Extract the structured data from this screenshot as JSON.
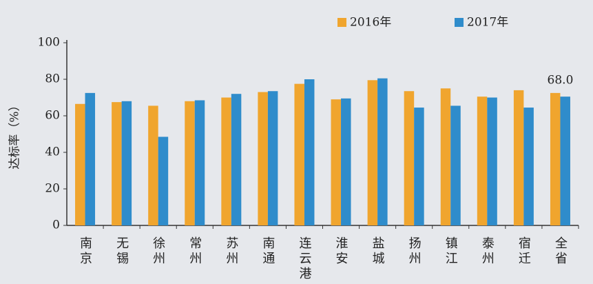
{
  "chart_data": {
    "type": "bar",
    "categories": [
      "南京",
      "无锡",
      "徐州",
      "常州",
      "苏州",
      "南通",
      "连云港",
      "淮安",
      "盐城",
      "扬州",
      "镇江",
      "泰州",
      "宿迁",
      "全省"
    ],
    "series": [
      {
        "name": "2016年",
        "color": "#f0a52e",
        "values": [
          66.5,
          67.5,
          65.5,
          68,
          70,
          73,
          77.5,
          69,
          79.5,
          73.5,
          75,
          70.5,
          74,
          72.5
        ]
      },
      {
        "name": "2017年",
        "color": "#2f8ccb",
        "values": [
          72.5,
          68,
          48.5,
          68.5,
          72,
          73.5,
          80,
          69.5,
          80.5,
          64.5,
          65.5,
          70,
          64.5,
          70.5
        ]
      }
    ],
    "annotation": "68.0",
    "ylabel": "达标率（%）",
    "ylim": [
      0,
      100
    ],
    "yticks": [
      0,
      20,
      40,
      60,
      80,
      100
    ],
    "grid": false,
    "legend": "top"
  }
}
